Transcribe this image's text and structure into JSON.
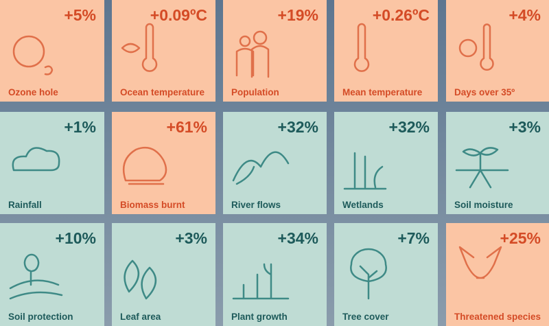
{
  "tiles": [
    {
      "value": "+5%",
      "label": "Ozone hole",
      "color": "orange"
    },
    {
      "value": "+0.09ºC",
      "label": "Ocean temperature",
      "color": "orange"
    },
    {
      "value": "+19%",
      "label": "Population",
      "color": "orange"
    },
    {
      "value": "+0.26ºC",
      "label": "Mean temperature",
      "color": "orange"
    },
    {
      "value": "+4%",
      "label": "Days over 35º",
      "color": "orange"
    },
    {
      "value": "+1%",
      "label": "Rainfall",
      "color": "teal"
    },
    {
      "value": "+61%",
      "label": "Biomass burnt",
      "color": "orange"
    },
    {
      "value": "+32%",
      "label": "River flows",
      "color": "teal"
    },
    {
      "value": "+32%",
      "label": "Wetlands",
      "color": "teal"
    },
    {
      "value": "+3%",
      "label": "Soil moisture",
      "color": "teal"
    },
    {
      "value": "+10%",
      "label": "Soil protection",
      "color": "teal"
    },
    {
      "value": "+3%",
      "label": "Leaf area",
      "color": "teal"
    },
    {
      "value": "+34%",
      "label": "Plant growth",
      "color": "teal"
    },
    {
      "value": "+7%",
      "label": "Tree cover",
      "color": "teal"
    },
    {
      "value": "+25%",
      "label": "Threatened species",
      "color": "orange"
    }
  ]
}
